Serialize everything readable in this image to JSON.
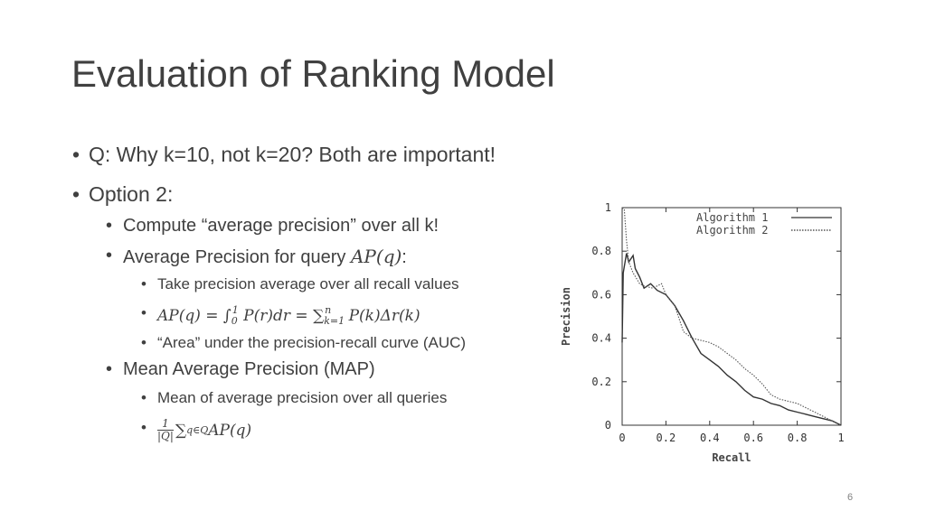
{
  "slide": {
    "title": "Evaluation of Ranking Model",
    "page_number": "6"
  },
  "bullets": {
    "q": "Q: Why k=10, not k=20? Both are important!",
    "option2": "Option 2:",
    "compute": "Compute “average precision” over all k!",
    "ap_query_text": "Average Precision for query ",
    "ap_query_math": "AP(q)",
    "ap_query_colon": ":",
    "take_avg": "Take precision average over all recall values",
    "ap_formula_left": "AP(q) = ∫",
    "ap_formula_lower": "0",
    "ap_formula_upper": "1",
    "ap_formula_mid": " P(r)dr = ∑",
    "ap_formula_sum_lower": "k=1",
    "ap_formula_sum_upper": "n",
    "ap_formula_right": " P(k)Δr(k)",
    "area": "“Area” under the precision-recall curve (AUC)",
    "map": "Mean Average Precision (MAP)",
    "mean_avg": "Mean of average precision over all queries",
    "map_frac_num": "1",
    "map_frac_den": "|Q|",
    "map_sum": "∑",
    "map_sum_sub": "q∈Q",
    "map_rest": " AP(q)",
    "bullet_char": "•"
  },
  "chart_data": {
    "type": "line",
    "xlabel": "Recall",
    "ylabel": "Precision",
    "xlim": [
      0,
      1
    ],
    "ylim": [
      0,
      1
    ],
    "xticks": [
      "0",
      "0.2",
      "0.4",
      "0.6",
      "0.8",
      "1"
    ],
    "yticks": [
      "0",
      "0.2",
      "0.4",
      "0.6",
      "0.8",
      "1"
    ],
    "legend_position": "top-right",
    "grid": false,
    "series": [
      {
        "name": "Algorithm 1",
        "style": "solid",
        "x": [
          0,
          0.005,
          0.02,
          0.03,
          0.05,
          0.06,
          0.08,
          0.1,
          0.13,
          0.16,
          0.2,
          0.24,
          0.28,
          0.32,
          0.36,
          0.4,
          0.44,
          0.48,
          0.52,
          0.56,
          0.6,
          0.64,
          0.68,
          0.72,
          0.76,
          0.8,
          0.84,
          0.88,
          0.92,
          0.96,
          1.0
        ],
        "y": [
          0.38,
          0.7,
          0.79,
          0.75,
          0.78,
          0.72,
          0.68,
          0.63,
          0.65,
          0.62,
          0.6,
          0.55,
          0.48,
          0.4,
          0.33,
          0.3,
          0.27,
          0.23,
          0.2,
          0.16,
          0.13,
          0.12,
          0.1,
          0.09,
          0.07,
          0.06,
          0.05,
          0.04,
          0.03,
          0.02,
          0.0
        ]
      },
      {
        "name": "Algorithm 2",
        "style": "dotted",
        "x": [
          0,
          0.01,
          0.02,
          0.03,
          0.05,
          0.08,
          0.1,
          0.14,
          0.18,
          0.2,
          0.24,
          0.28,
          0.32,
          0.36,
          0.4,
          0.44,
          0.48,
          0.52,
          0.56,
          0.6,
          0.64,
          0.68,
          0.72,
          0.76,
          0.8,
          0.84,
          0.88,
          0.92,
          0.96,
          1.0
        ],
        "y": [
          1.0,
          0.99,
          0.85,
          0.75,
          0.7,
          0.65,
          0.64,
          0.63,
          0.65,
          0.6,
          0.55,
          0.43,
          0.4,
          0.39,
          0.38,
          0.36,
          0.33,
          0.3,
          0.26,
          0.23,
          0.19,
          0.14,
          0.12,
          0.11,
          0.1,
          0.08,
          0.06,
          0.04,
          0.02,
          0.0
        ]
      }
    ]
  }
}
